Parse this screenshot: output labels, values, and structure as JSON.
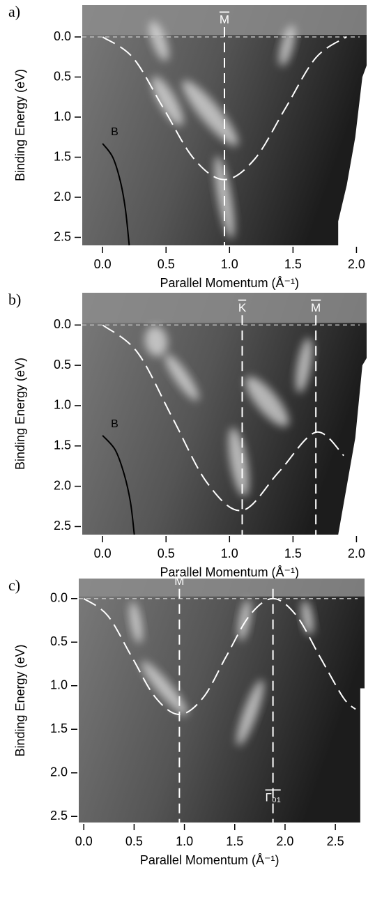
{
  "chart_data": [
    {
      "type": "heatmap",
      "panel": "a)",
      "xlabel": "Parallel Momentum (Å⁻¹)",
      "ylabel": "Binding Energy (eV)",
      "xlim": [
        -0.16,
        2.08
      ],
      "ylim": [
        -0.4,
        2.6
      ],
      "xticks": [
        {
          "value": 0,
          "label": "0.0"
        },
        {
          "value": 0.5,
          "label": "0.5"
        },
        {
          "value": 1,
          "label": "1.0"
        },
        {
          "value": 1.5,
          "label": "1.5"
        },
        {
          "value": 2,
          "label": "2.0"
        }
      ],
      "yticks": [
        {
          "value": 0,
          "label": "0.0"
        },
        {
          "value": 0.5,
          "label": "0.5"
        },
        {
          "value": 1,
          "label": "1.0"
        },
        {
          "value": 1.5,
          "label": "1.5"
        },
        {
          "value": 2,
          "label": "2.0"
        },
        {
          "value": 2.5,
          "label": "2.5"
        }
      ],
      "curves": [
        {
          "style": "dashed",
          "color": "#ffffff",
          "x": [
            0,
            0.24,
            0.48,
            0.72,
            0.96,
            1.2,
            1.44,
            1.68,
            1.92
          ],
          "values": [
            0,
            0.26,
            0.89,
            1.52,
            1.78,
            1.52,
            0.89,
            0.26,
            0
          ]
        },
        {
          "style": "solid",
          "color": "#000000",
          "label": "B",
          "x": [
            0,
            0.08,
            0.14,
            0.18,
            0.21
          ],
          "values": [
            1.33,
            1.5,
            1.8,
            2.15,
            2.6
          ]
        }
      ],
      "markers": [
        {
          "x": 0.96,
          "label": "M"
        }
      ]
    },
    {
      "type": "heatmap",
      "panel": "b)",
      "xlabel": "Parallel Momentum (Å⁻¹)",
      "ylabel": "Binding Energy (eV)",
      "xlim": [
        -0.16,
        2.08
      ],
      "ylim": [
        -0.4,
        2.6
      ],
      "xticks": [
        {
          "value": 0,
          "label": "0.0"
        },
        {
          "value": 0.5,
          "label": "0.5"
        },
        {
          "value": 1,
          "label": "1.0"
        },
        {
          "value": 1.5,
          "label": "1.5"
        },
        {
          "value": 2,
          "label": "2.0"
        }
      ],
      "yticks": [
        {
          "value": 0,
          "label": "0.0"
        },
        {
          "value": 0.5,
          "label": "0.5"
        },
        {
          "value": 1,
          "label": "1.0"
        },
        {
          "value": 1.5,
          "label": "1.5"
        },
        {
          "value": 2,
          "label": "2.0"
        },
        {
          "value": 2.5,
          "label": "2.5"
        }
      ],
      "curves": [
        {
          "style": "dashed",
          "color": "#ffffff",
          "x": [
            0,
            0.275,
            0.55,
            0.825,
            1.1,
            1.39,
            1.68,
            1.9
          ],
          "values": [
            0,
            0.34,
            1.15,
            1.96,
            2.3,
            1.82,
            1.33,
            1.62
          ]
        },
        {
          "style": "solid",
          "color": "#000000",
          "label": "B",
          "x": [
            0,
            0.1,
            0.17,
            0.22,
            0.25
          ],
          "values": [
            1.37,
            1.55,
            1.85,
            2.2,
            2.6
          ]
        }
      ],
      "markers": [
        {
          "x": 1.1,
          "label": "K"
        },
        {
          "x": 1.68,
          "label": "M"
        }
      ]
    },
    {
      "type": "heatmap",
      "panel": "c)",
      "xlabel": "Parallel Momentum (Å⁻¹)",
      "ylabel": "Binding Energy (eV)",
      "xlim": [
        -0.05,
        2.79
      ],
      "ylim": [
        -0.23,
        2.57
      ],
      "xticks": [
        {
          "value": 0,
          "label": "0.0"
        },
        {
          "value": 0.5,
          "label": "0.5"
        },
        {
          "value": 1,
          "label": "1.0"
        },
        {
          "value": 1.5,
          "label": "1.5"
        },
        {
          "value": 2,
          "label": "2.0"
        },
        {
          "value": 2.5,
          "label": "2.5"
        }
      ],
      "yticks": [
        {
          "value": 0,
          "label": "0.0"
        },
        {
          "value": 0.5,
          "label": "0.5"
        },
        {
          "value": 1,
          "label": "1.0"
        },
        {
          "value": 1.5,
          "label": "1.5"
        },
        {
          "value": 2,
          "label": "2.0"
        },
        {
          "value": 2.5,
          "label": "2.5"
        }
      ],
      "curves": [
        {
          "style": "dashed",
          "color": "#ffffff",
          "x": [
            0,
            0.2375,
            0.475,
            0.7125,
            0.95,
            1.1875,
            1.415,
            1.6475,
            1.88,
            2.1125,
            2.345,
            2.5775,
            2.7
          ],
          "values": [
            0,
            0.195,
            0.665,
            1.135,
            1.33,
            1.135,
            0.665,
            0.195,
            0,
            0.195,
            0.665,
            1.135,
            1.27
          ]
        }
      ],
      "markers": [
        {
          "x": 0.95,
          "label": "M"
        },
        {
          "x": 1.88,
          "label": "Γ₀₁",
          "bottom": true
        }
      ]
    }
  ]
}
